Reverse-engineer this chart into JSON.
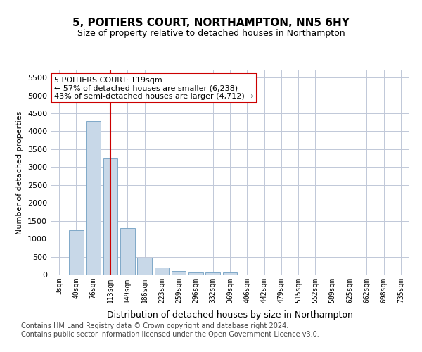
{
  "title": "5, POITIERS COURT, NORTHAMPTON, NN5 6HY",
  "subtitle": "Size of property relative to detached houses in Northampton",
  "xlabel": "Distribution of detached houses by size in Northampton",
  "ylabel": "Number of detached properties",
  "categories": [
    "3sqm",
    "40sqm",
    "76sqm",
    "113sqm",
    "149sqm",
    "186sqm",
    "223sqm",
    "259sqm",
    "296sqm",
    "332sqm",
    "369sqm",
    "406sqm",
    "442sqm",
    "479sqm",
    "515sqm",
    "552sqm",
    "589sqm",
    "625sqm",
    "662sqm",
    "698sqm",
    "735sqm"
  ],
  "values": [
    0,
    1230,
    4280,
    3250,
    1290,
    480,
    200,
    90,
    60,
    55,
    50,
    0,
    0,
    0,
    0,
    0,
    0,
    0,
    0,
    0,
    0
  ],
  "bar_color": "#c8d8e8",
  "bar_edge_color": "#7fa8c8",
  "vline_x": 3,
  "vline_color": "#cc0000",
  "annotation_text": "5 POITIERS COURT: 119sqm\n← 57% of detached houses are smaller (6,238)\n43% of semi-detached houses are larger (4,712) →",
  "annotation_box_color": "#ffffff",
  "annotation_box_edge": "#cc0000",
  "ylim": [
    0,
    5700
  ],
  "yticks": [
    0,
    500,
    1000,
    1500,
    2000,
    2500,
    3000,
    3500,
    4000,
    4500,
    5000,
    5500
  ],
  "footer_line1": "Contains HM Land Registry data © Crown copyright and database right 2024.",
  "footer_line2": "Contains public sector information licensed under the Open Government Licence v3.0.",
  "background_color": "#ffffff",
  "grid_color": "#c0c8d8"
}
